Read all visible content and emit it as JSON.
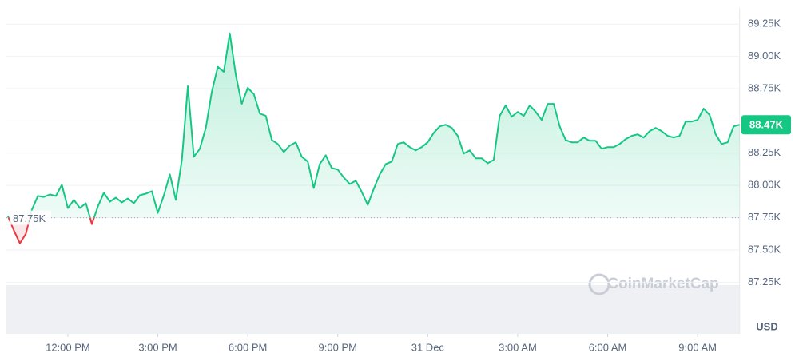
{
  "chart_data": {
    "type": "line",
    "x": [
      10,
      10.2,
      10.4,
      10.6,
      10.8,
      11,
      11.2,
      11.4,
      11.6,
      11.8,
      12,
      12.2,
      12.4,
      12.6,
      12.8,
      13,
      13.2,
      13.4,
      13.6,
      13.8,
      14,
      14.2,
      14.4,
      14.6,
      14.8,
      15,
      15.2,
      15.4,
      15.6,
      15.8,
      16,
      16.2,
      16.4,
      16.6,
      16.8,
      17,
      17.2,
      17.4,
      17.6,
      17.8,
      18,
      18.2,
      18.4,
      18.6,
      18.8,
      19,
      19.2,
      19.4,
      19.6,
      19.8,
      20,
      20.2,
      20.4,
      20.6,
      20.8,
      21,
      21.2,
      21.4,
      21.6,
      21.8,
      22,
      22.2,
      22.4,
      22.6,
      22.8,
      23,
      23.2,
      23.4,
      23.6,
      23.8,
      24,
      24.2,
      24.4,
      24.6,
      24.8,
      25,
      25.2,
      25.4,
      25.6,
      25.8,
      26,
      26.2,
      26.4,
      26.6,
      26.8,
      27,
      27.2,
      27.4,
      27.6,
      27.8,
      28,
      28.2,
      28.4,
      28.6,
      28.8,
      29,
      29.2,
      29.4,
      29.6,
      29.8,
      30,
      30.2,
      30.4,
      30.6,
      30.8,
      31,
      31.2,
      31.4,
      31.6,
      31.8,
      32,
      32.2,
      32.4,
      32.6,
      32.8,
      33,
      33.2,
      33.4,
      33.6,
      33.8,
      34,
      34.2,
      34.4
    ],
    "values": [
      87762,
      87651,
      87551,
      87626,
      87812,
      87918,
      87911,
      87930,
      87918,
      88005,
      87825,
      87887,
      87825,
      87862,
      87700,
      87837,
      87943,
      87874,
      87905,
      87868,
      87899,
      87862,
      87924,
      87936,
      87955,
      87787,
      87924,
      88085,
      87887,
      88197,
      88769,
      88222,
      88284,
      88446,
      88725,
      88918,
      88880,
      89179,
      88856,
      88632,
      88756,
      88707,
      88557,
      88539,
      88352,
      88321,
      88259,
      88309,
      88334,
      88222,
      88185,
      87980,
      88166,
      88234,
      88135,
      88123,
      88061,
      88011,
      88036,
      87949,
      87849,
      87974,
      88085,
      88166,
      88185,
      88321,
      88334,
      88297,
      88272,
      88297,
      88334,
      88408,
      88458,
      88470,
      88446,
      88384,
      88247,
      88272,
      88210,
      88210,
      88172,
      88197,
      88539,
      88620,
      88532,
      88570,
      88539,
      88620,
      88570,
      88508,
      88632,
      88632,
      88458,
      88352,
      88334,
      88334,
      88371,
      88346,
      88346,
      88284,
      88297,
      88297,
      88321,
      88359,
      88384,
      88396,
      88371,
      88421,
      88446,
      88421,
      88384,
      88371,
      88384,
      88495,
      88495,
      88508,
      88595,
      88545,
      88396,
      88321,
      88334,
      88458,
      88470
    ],
    "color": "#16c784",
    "down_color": "#ea3943",
    "xlim": [
      9.95,
      34.4
    ],
    "xticks": [
      {
        "value": 12,
        "label": "12:00 PM"
      },
      {
        "value": 15,
        "label": "3:00 PM"
      },
      {
        "value": 18,
        "label": "6:00 PM"
      },
      {
        "value": 21,
        "label": "9:00 PM"
      },
      {
        "value": 24,
        "label": "31 Dec"
      },
      {
        "value": 27,
        "label": "3:00 AM"
      },
      {
        "value": 30,
        "label": "6:00 AM"
      },
      {
        "value": 33,
        "label": "9:00 AM"
      }
    ],
    "ylim": [
      86850,
      89375
    ],
    "yticks": [
      {
        "value": 87250,
        "label": "87.25K"
      },
      {
        "value": 87500,
        "label": "87.50K"
      },
      {
        "value": 87750,
        "label": "87.75K"
      },
      {
        "value": 88000,
        "label": "88.00K"
      },
      {
        "value": 88250,
        "label": "88.25K"
      },
      {
        "value": 88500,
        "label": "88.50K"
      },
      {
        "value": 88750,
        "label": "88.75K"
      },
      {
        "value": 89000,
        "label": "89.00K"
      },
      {
        "value": 89250,
        "label": "89.25K"
      }
    ],
    "grid": true,
    "reference_line": {
      "value": 87750,
      "label": "87.75K"
    },
    "current_price": {
      "value": 88470,
      "label": "88.47K"
    },
    "currency": "USD",
    "watermark": "CoinMarketCap"
  }
}
